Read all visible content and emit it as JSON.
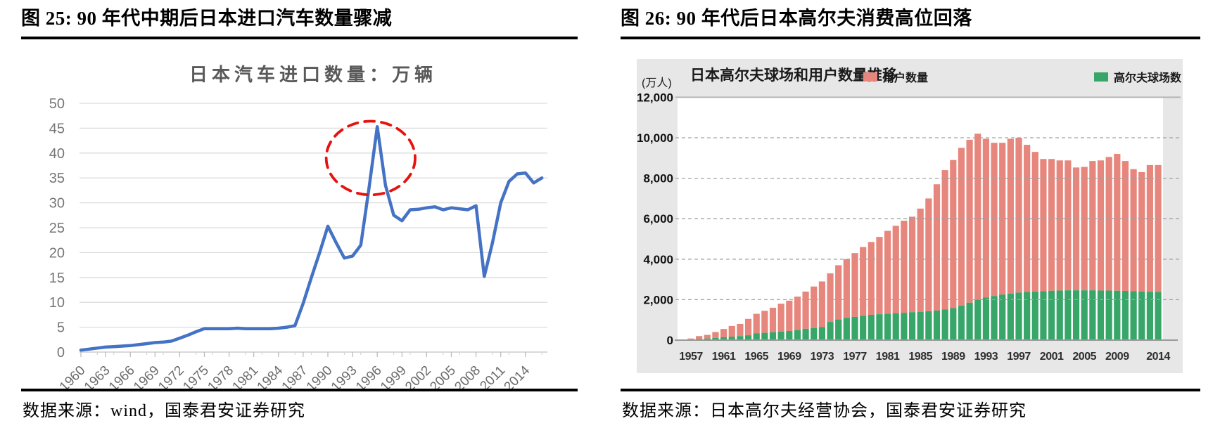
{
  "figures": [
    {
      "heading": "图 25: 90 年代中期后日本进口汽车数量骤减",
      "source": "数据来源：wind，国泰君安证券研究"
    },
    {
      "heading": "图 26: 90 年代后日本高尔夫消费高位回落",
      "source": "数据来源：日本高尔夫经营协会，国泰君安证券研究"
    }
  ],
  "chart_data": [
    {
      "type": "line",
      "title": "日本汽车进口数量：万辆",
      "x_years": {
        "start": 1960,
        "end": 2016,
        "step": 1
      },
      "values": [
        0.4,
        0.6,
        0.8,
        1.0,
        1.1,
        1.2,
        1.3,
        1.5,
        1.7,
        1.9,
        2.0,
        2.2,
        2.8,
        3.4,
        4.1,
        4.7,
        4.7,
        4.7,
        4.7,
        4.8,
        4.7,
        4.7,
        4.7,
        4.7,
        4.8,
        5.0,
        5.3,
        9.8,
        15.0,
        20.0,
        25.3,
        22.0,
        18.9,
        19.3,
        21.5,
        33.0,
        45.3,
        33.5,
        27.5,
        26.4,
        28.6,
        28.7,
        29.0,
        29.2,
        28.6,
        29.0,
        28.8,
        28.6,
        29.4,
        15.2,
        22.0,
        30.0,
        34.3,
        35.8,
        36.0,
        34.0,
        35.0
      ],
      "x_tick_labels": [
        "1960",
        "1963",
        "1966",
        "1969",
        "1972",
        "1975",
        "1978",
        "1981",
        "1984",
        "1987",
        "1990",
        "1993",
        "1996",
        "1999",
        "2002",
        "2005",
        "2008",
        "2011",
        "2014"
      ],
      "y_ticks": [
        "0",
        "5",
        "10",
        "15",
        "20",
        "25",
        "30",
        "35",
        "40",
        "45",
        "50"
      ],
      "ylim": [
        0,
        50
      ],
      "grid": "horizontal-solid",
      "line_color": "#4472c4",
      "grid_color": "#dcdcdc",
      "annotation": {
        "shape": "dashed-ellipse",
        "color": "#e8110d",
        "center_year": 1995.2,
        "center_value": 39.0,
        "radius_years": 5.4,
        "radius_values": 7.4
      }
    },
    {
      "type": "stacked-bar",
      "title": "日本高尔夫球场和用户数量推移",
      "y_axis_unit": "(万人)",
      "x_years": {
        "start": 1957,
        "end": 2014,
        "step": 1
      },
      "series": [
        {
          "name": "用户数量",
          "color": "#e6867c",
          "stack_position": "top",
          "stack_top_values": [
            80,
            200,
            260,
            400,
            550,
            700,
            800,
            1050,
            1300,
            1450,
            1600,
            1800,
            1950,
            2150,
            2400,
            2650,
            2900,
            3300,
            3700,
            4000,
            4300,
            4600,
            4850,
            5100,
            5400,
            5650,
            5900,
            6100,
            6500,
            7000,
            7700,
            8400,
            8900,
            9500,
            9900,
            10200,
            9950,
            9750,
            9750,
            9950,
            10000,
            9650,
            9300,
            8950,
            8950,
            8880,
            8880,
            8530,
            8560,
            8850,
            8880,
            9050,
            9200,
            8850,
            8450,
            8300,
            8650,
            8650
          ]
        },
        {
          "name": "高尔夫球场数",
          "color": "#38a569",
          "stack_position": "bottom",
          "values": [
            40,
            60,
            80,
            110,
            140,
            170,
            200,
            240,
            330,
            360,
            390,
            420,
            450,
            500,
            560,
            600,
            650,
            900,
            1020,
            1100,
            1150,
            1200,
            1250,
            1280,
            1300,
            1330,
            1350,
            1380,
            1400,
            1430,
            1460,
            1510,
            1580,
            1700,
            1850,
            2000,
            2100,
            2180,
            2250,
            2300,
            2350,
            2380,
            2400,
            2420,
            2440,
            2450,
            2460,
            2460,
            2460,
            2460,
            2450,
            2450,
            2440,
            2430,
            2420,
            2400,
            2390,
            2380
          ]
        }
      ],
      "x_tick_labels": [
        "1957",
        "1961",
        "1965",
        "1969",
        "1973",
        "1977",
        "1981",
        "1985",
        "1989",
        "1993",
        "1997",
        "2001",
        "2005",
        "2009",
        "2014"
      ],
      "y_ticks": [
        "0",
        "2,000",
        "4,000",
        "6,000",
        "8,000",
        "10,000",
        "12,000"
      ],
      "ylim": [
        0,
        12000
      ],
      "grid": "horizontal-dashed",
      "legend_position": "top-right",
      "panel_bg": "#e7e7e7",
      "plot_bg": "#ffffff"
    }
  ]
}
